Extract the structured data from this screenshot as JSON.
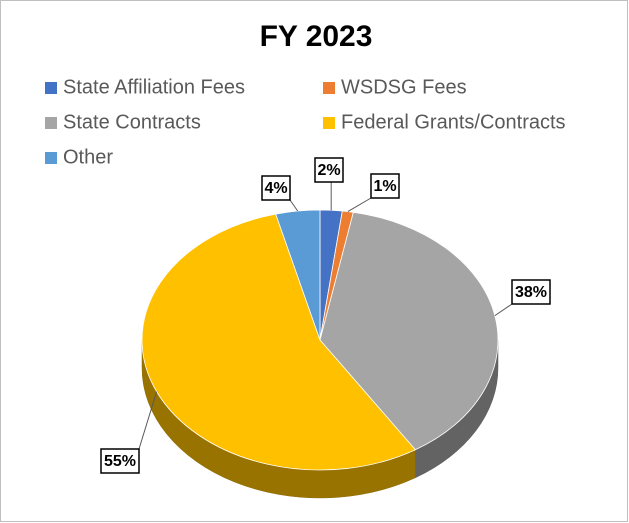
{
  "chart_data": {
    "type": "pie",
    "title": "FY 2023",
    "categories": [
      "State Affiliation Fees",
      "WSDSG Fees",
      "State Contracts",
      "Federal Grants/Contracts",
      "Other"
    ],
    "values": [
      2,
      1,
      38,
      55,
      4
    ],
    "value_labels": [
      "2%",
      "1%",
      "38%",
      "55%",
      "4%"
    ],
    "colors": [
      "#4472c4",
      "#ed7d31",
      "#a5a5a5",
      "#ffc000",
      "#5b9bd5"
    ],
    "legend": "top"
  }
}
